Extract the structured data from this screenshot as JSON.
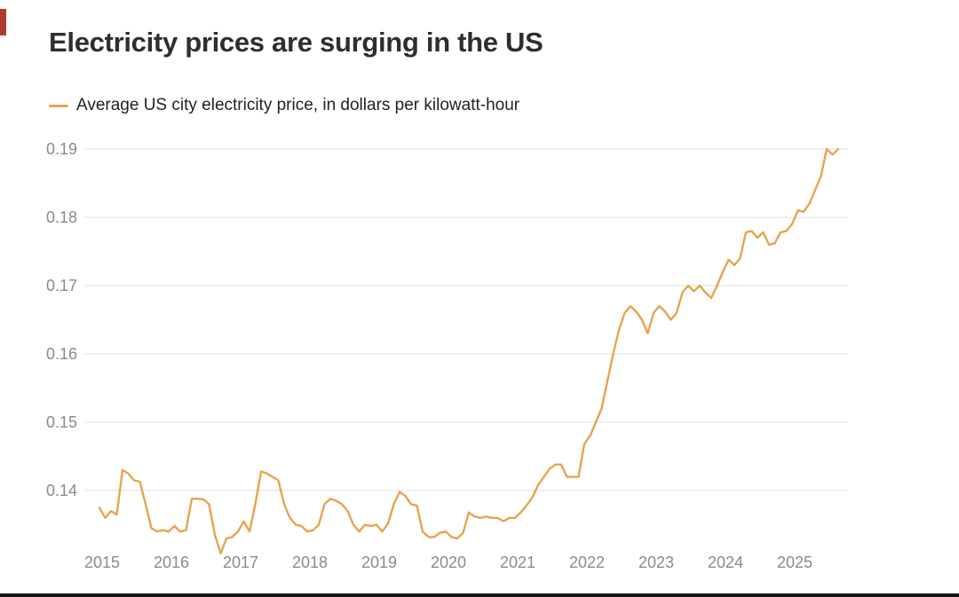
{
  "header": {
    "title": "Electricity prices are surging in the US"
  },
  "legend": {
    "label": "Average US city electricity price, in dollars per kilowatt-hour",
    "swatch_color": "#E8A44D"
  },
  "colors": {
    "line": "#E8A44D",
    "grid": "#e0e0e0",
    "axis_text": "#8a8a8a",
    "title_text": "#2e2e2e"
  },
  "chart_data": {
    "type": "line",
    "title": "Electricity prices are surging in the US",
    "series_name": "Average US city electricity price, in dollars per kilowatt-hour",
    "x_start": {
      "year": 2015,
      "month": 1
    },
    "x_tick_labels": [
      "2015",
      "2016",
      "2017",
      "2018",
      "2019",
      "2020",
      "2021",
      "2022",
      "2023",
      "2024",
      "2025"
    ],
    "y_ticks": [
      0.14,
      0.15,
      0.16,
      0.17,
      0.18,
      0.19
    ],
    "ylim": [
      0.128,
      0.193
    ],
    "grid": "horizontal",
    "legend_position": "top-left",
    "line_color": "#E8A44D",
    "values": [
      0.1375,
      0.136,
      0.137,
      0.1365,
      0.143,
      0.1425,
      0.1415,
      0.1413,
      0.138,
      0.1345,
      0.134,
      0.1342,
      0.134,
      0.1348,
      0.134,
      0.1342,
      0.1388,
      0.1388,
      0.1387,
      0.138,
      0.1335,
      0.1308,
      0.133,
      0.1332,
      0.134,
      0.1355,
      0.134,
      0.138,
      0.1428,
      0.1425,
      0.142,
      0.1415,
      0.138,
      0.136,
      0.135,
      0.1348,
      0.134,
      0.1342,
      0.135,
      0.138,
      0.1388,
      0.1385,
      0.138,
      0.137,
      0.135,
      0.134,
      0.135,
      0.1348,
      0.135,
      0.134,
      0.1352,
      0.138,
      0.1398,
      0.1392,
      0.138,
      0.1378,
      0.134,
      0.1332,
      0.1332,
      0.1338,
      0.134,
      0.1332,
      0.133,
      0.1338,
      0.1368,
      0.1362,
      0.136,
      0.1362,
      0.136,
      0.136,
      0.1355,
      0.136,
      0.136,
      0.1368,
      0.1378,
      0.139,
      0.1408,
      0.142,
      0.1432,
      0.1438,
      0.1438,
      0.142,
      0.142,
      0.142,
      0.1468,
      0.148,
      0.15,
      0.152,
      0.156,
      0.16,
      0.1635,
      0.166,
      0.167,
      0.1662,
      0.165,
      0.163,
      0.166,
      0.167,
      0.1662,
      0.165,
      0.166,
      0.169,
      0.17,
      0.1692,
      0.17,
      0.169,
      0.1682,
      0.17,
      0.172,
      0.1738,
      0.173,
      0.174,
      0.1778,
      0.178,
      0.177,
      0.1778,
      0.176,
      0.1762,
      0.1778,
      0.178,
      0.179,
      0.181,
      0.1808,
      0.182,
      0.184,
      0.186,
      0.19,
      0.1892,
      0.19
    ]
  }
}
